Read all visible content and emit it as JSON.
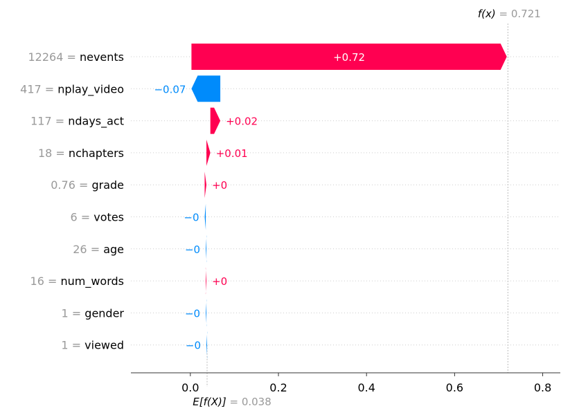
{
  "chart_data": {
    "type": "waterfall",
    "title": "",
    "xlabel": "",
    "ylabel": "",
    "xlim": [
      -0.135,
      0.84
    ],
    "xticks": [
      0.0,
      0.2,
      0.4,
      0.6,
      0.8
    ],
    "xtick_labels": [
      "0.0",
      "0.2",
      "0.4",
      "0.6",
      "0.8"
    ],
    "base_value": 0.038,
    "output_value": 0.721,
    "fx_label": {
      "fn": "f(x)",
      "eq": " = ",
      "value": "0.721"
    },
    "efx_label": {
      "fn": "E[f(X)]",
      "eq": " = ",
      "value": "0.038"
    },
    "grid": false,
    "positive_color": "#ff0051",
    "negative_color": "#008bfb",
    "features": [
      {
        "value_text": "12264",
        "name": "nevents",
        "shap": 0.716,
        "label": "+0.72"
      },
      {
        "value_text": "417",
        "name": "nplay_video",
        "shap": -0.0655,
        "label": "−0.07"
      },
      {
        "value_text": "117",
        "name": "ndays_act",
        "shap": 0.0226,
        "label": "+0.02"
      },
      {
        "value_text": "18",
        "name": "nchapters",
        "shap": 0.0089,
        "label": "+0.01"
      },
      {
        "value_text": "0.76",
        "name": "grade",
        "shap": 0.004,
        "label": "+0"
      },
      {
        "value_text": "6",
        "name": "votes",
        "shap": -0.0025,
        "label": "−0"
      },
      {
        "value_text": "26",
        "name": "age",
        "shap": -0.0015,
        "label": "−0"
      },
      {
        "value_text": "16",
        "name": "num_words",
        "shap": 0.0015,
        "label": "+0"
      },
      {
        "value_text": "1",
        "name": "gender",
        "shap": -0.0015,
        "label": "−0"
      },
      {
        "value_text": "1",
        "name": "viewed",
        "shap": -0.0015,
        "label": "−0"
      }
    ]
  }
}
